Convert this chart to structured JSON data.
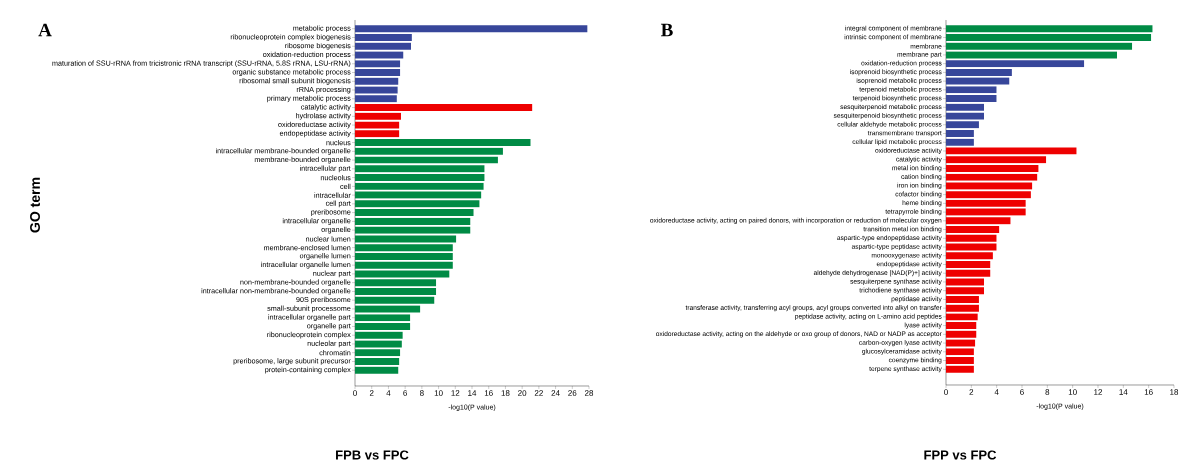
{
  "chart_data": [
    {
      "type": "bar",
      "orientation": "horizontal",
      "title": "FPB vs FPC",
      "xlabel": "-log10(P value)",
      "ylabel": "GO term",
      "annotations": [
        "A"
      ],
      "categories": [
        "metabolic process",
        "ribonucleoprotein complex biogenesis",
        "ribosome biogenesis",
        "oxidation-reduction process",
        "maturation of SSU-rRNA from tricistronic rRNA transcript (SSU-rRNA, 5.8S rRNA, LSU-rRNA)",
        "organic substance metabolic process",
        "ribosomal small subunit biogenesis",
        "rRNA processing",
        "primary metabolic process",
        "catalytic activity",
        "hydrolase activity",
        "oxidoreductase activity",
        "endopeptidase activity",
        "nucleus",
        "intracellular membrane-bounded organelle",
        "membrane-bounded organelle",
        "intracellular part",
        "nucleolus",
        "cell",
        "intracellular",
        "cell part",
        "preribosome",
        "intracellular organelle",
        "organelle",
        "nuclear lumen",
        "membrane-enclosed lumen",
        "organelle lumen",
        "intracellular organelle lumen",
        "nuclear part",
        "non-membrane-bounded organelle",
        "intracellular non-membrane-bounded organelle",
        "90S preribosome",
        "small-subunit processome",
        "intracellular organelle part",
        "organelle part",
        "ribonucleoprotein complex",
        "nucleolar part",
        "chromatin",
        "preribosome, large subunit precursor",
        "protein-containing complex"
      ],
      "values": [
        27.8,
        6.8,
        6.7,
        5.8,
        5.4,
        5.4,
        5.2,
        5.1,
        5.0,
        21.2,
        5.5,
        5.3,
        5.3,
        21.0,
        17.7,
        17.1,
        15.5,
        15.5,
        15.4,
        15.1,
        14.9,
        14.2,
        13.8,
        13.8,
        12.1,
        11.7,
        11.7,
        11.7,
        11.3,
        9.7,
        9.7,
        9.5,
        7.8,
        6.6,
        6.6,
        5.7,
        5.6,
        5.4,
        5.3,
        5.2
      ],
      "colors": [
        "#37469a",
        "#37469a",
        "#37469a",
        "#37469a",
        "#37469a",
        "#37469a",
        "#37469a",
        "#37469a",
        "#37469a",
        "#ee0000",
        "#ee0000",
        "#ee0000",
        "#ee0000",
        "#008b45",
        "#008b45",
        "#008b45",
        "#008b45",
        "#008b45",
        "#008b45",
        "#008b45",
        "#008b45",
        "#008b45",
        "#008b45",
        "#008b45",
        "#008b45",
        "#008b45",
        "#008b45",
        "#008b45",
        "#008b45",
        "#008b45",
        "#008b45",
        "#008b45",
        "#008b45",
        "#008b45",
        "#008b45",
        "#008b45",
        "#008b45",
        "#008b45",
        "#008b45",
        "#008b45"
      ],
      "xlim": [
        0,
        28
      ],
      "xticks": [
        0,
        2,
        4,
        6,
        8,
        10,
        12,
        14,
        16,
        18,
        20,
        22,
        24,
        26,
        28
      ]
    },
    {
      "type": "bar",
      "orientation": "horizontal",
      "title": "FPP vs FPC",
      "xlabel": "-log10(P value)",
      "annotations": [
        "B"
      ],
      "categories": [
        "integral component of membrane",
        "intrinsic component of membrane",
        "membrane",
        "membrane part",
        "oxidation-reduction process",
        "isoprenoid biosynthetic process",
        "isoprenoid metabolic process",
        "terpenoid metabolic process",
        "terpenoid biosynthetic process",
        "sesquiterpenoid metabolic process",
        "sesquiterpenoid biosynthetic process",
        "cellular aldehyde metabolic process",
        "transmembrane transport",
        "cellular lipid metabolic process",
        "oxidoreductase activity",
        "catalytic activity",
        "metal ion binding",
        "cation binding",
        "iron ion binding",
        "cofactor binding",
        "heme binding",
        "tetrapyrrole binding",
        "oxidoreductase activity, acting on paired donors, with incorporation or reduction of molecular oxygen",
        "transition metal ion binding",
        "aspartic-type endopeptidase activity",
        "aspartic-type peptidase activity",
        "monooxygenase activity",
        "endopeptidase activity",
        "aldehyde dehydrogenase [NAD(P)+] activity",
        "sesquiterpene synthase activity",
        "trichodiene synthase activity",
        "peptidase activity",
        "transferase activity, transferring acyl groups, acyl groups converted into alkyl on transfer",
        "peptidase activity, acting on L-amino acid peptides",
        "lyase activity",
        "oxidoreductase activity, acting on the aldehyde or oxo group of donors, NAD or NADP as acceptor",
        "carbon-oxygen lyase activity",
        "glucosylceramidase activity",
        "coenzyme binding",
        "terpene synthase activity"
      ],
      "values": [
        16.3,
        16.2,
        14.7,
        13.5,
        10.9,
        5.2,
        5.0,
        4.0,
        4.0,
        3.0,
        3.0,
        2.6,
        2.2,
        2.2,
        10.3,
        7.9,
        7.3,
        7.2,
        6.8,
        6.7,
        6.3,
        6.3,
        5.1,
        4.2,
        4.0,
        4.0,
        3.7,
        3.5,
        3.5,
        3.0,
        3.0,
        2.6,
        2.6,
        2.5,
        2.4,
        2.4,
        2.3,
        2.2,
        2.2,
        2.2
      ],
      "colors": [
        "#008b45",
        "#008b45",
        "#008b45",
        "#008b45",
        "#37469a",
        "#37469a",
        "#37469a",
        "#37469a",
        "#37469a",
        "#37469a",
        "#37469a",
        "#37469a",
        "#37469a",
        "#37469a",
        "#ee0000",
        "#ee0000",
        "#ee0000",
        "#ee0000",
        "#ee0000",
        "#ee0000",
        "#ee0000",
        "#ee0000",
        "#ee0000",
        "#ee0000",
        "#ee0000",
        "#ee0000",
        "#ee0000",
        "#ee0000",
        "#ee0000",
        "#ee0000",
        "#ee0000",
        "#ee0000",
        "#ee0000",
        "#ee0000",
        "#ee0000",
        "#ee0000",
        "#ee0000",
        "#ee0000",
        "#ee0000",
        "#ee0000"
      ],
      "xlim": [
        0,
        18
      ],
      "xticks": [
        0,
        2,
        4,
        6,
        8,
        10,
        12,
        14,
        16,
        18
      ]
    }
  ]
}
